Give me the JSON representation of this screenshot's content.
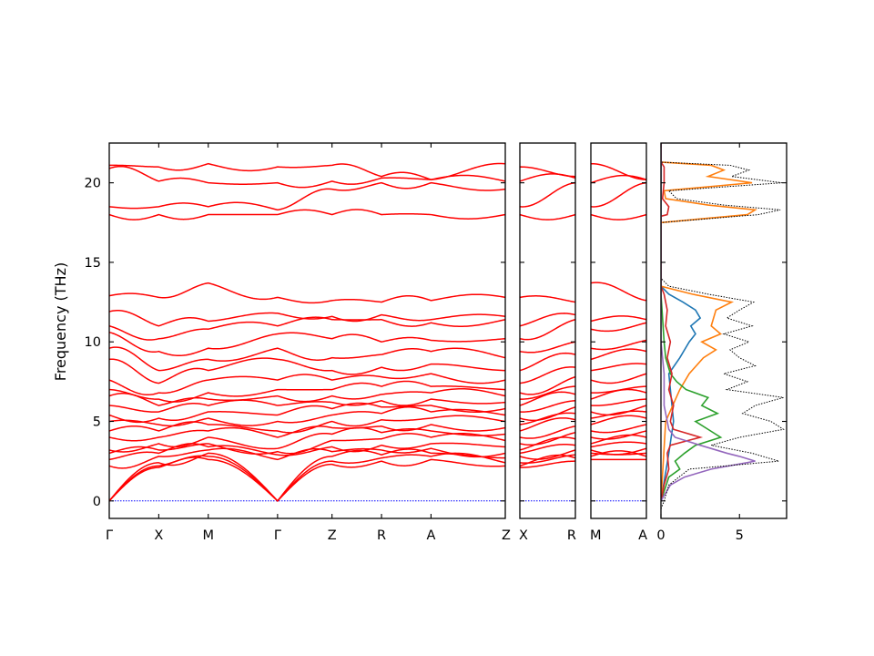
{
  "chart_data": {
    "type": "line",
    "title": "",
    "ylabel": "Frequency (THz)",
    "ylim": [
      -1.1,
      22.5
    ],
    "yticks": [
      0,
      5,
      10,
      15,
      20
    ],
    "band_color": "#ff0000",
    "zero_line_color": "#0000ff",
    "grid": false,
    "segments": [
      {
        "path": [
          "Γ",
          "X",
          "M",
          "Γ",
          "Z",
          "R",
          "A",
          "Z"
        ],
        "tick_labels": [
          "Γ",
          "X",
          "M",
          "Γ",
          "Z",
          "R",
          "A",
          ""
        ],
        "k": [
          0,
          1,
          2,
          3.4,
          4.5,
          5.5,
          6.5,
          8
        ]
      },
      {
        "path": [
          "X",
          "R"
        ],
        "tick_labels": [
          "X",
          "R"
        ],
        "k": [
          0,
          1
        ]
      },
      {
        "path": [
          "M",
          "A"
        ],
        "tick_labels": [
          "M",
          "A"
        ],
        "k": [
          0,
          1
        ]
      }
    ],
    "segment_edge_labels": [
      "Z|X",
      "R|M"
    ],
    "bands_at_high_symmetry_points_THz": [
      [
        0,
        0,
        0,
        2.2,
        2.6,
        3.0,
        3.2,
        4.0,
        4.4,
        5.0,
        5.4,
        6.0,
        6.6,
        7.0,
        7.6,
        8.9,
        9.6,
        10.6,
        11.0,
        11.9,
        12.9,
        18.0,
        18.5,
        20.9,
        21.1
      ],
      [
        2.1,
        2.2,
        2.4,
        2.8,
        3.0,
        3.2,
        3.6,
        4.0,
        4.4,
        4.8,
        5.2,
        5.6,
        6.0,
        6.4,
        6.8,
        7.4,
        8.2,
        9.4,
        10.2,
        11.0,
        12.8,
        18.0,
        18.5,
        20.1,
        21.0
      ],
      [
        2.6,
        2.8,
        3.0,
        3.2,
        3.4,
        3.6,
        4.0,
        4.4,
        4.8,
        5.2,
        5.6,
        6.0,
        6.4,
        6.8,
        7.6,
        8.2,
        8.9,
        9.6,
        10.8,
        11.3,
        13.7,
        18.0,
        18.5,
        20.0,
        21.2
      ],
      [
        0,
        0,
        0,
        2.6,
        2.9,
        3.1,
        3.3,
        4.0,
        4.4,
        5.0,
        5.4,
        6.0,
        6.6,
        7.0,
        7.6,
        8.9,
        9.6,
        10.5,
        11.0,
        11.8,
        12.8,
        18.0,
        18.3,
        20.0,
        21.0
      ],
      [
        2.3,
        2.5,
        2.8,
        3.1,
        3.4,
        3.8,
        4.2,
        4.6,
        5.0,
        5.4,
        5.8,
        6.2,
        6.6,
        7.0,
        7.6,
        8.2,
        9.0,
        10.2,
        11.4,
        11.6,
        12.6,
        18.0,
        19.6,
        20.1,
        21.1
      ],
      [
        2.5,
        2.7,
        2.9,
        3.2,
        3.5,
        3.9,
        4.3,
        4.7,
        5.1,
        5.5,
        5.9,
        6.3,
        6.7,
        7.2,
        7.8,
        8.4,
        9.2,
        10.0,
        11.4,
        11.7,
        12.5,
        18.0,
        20.0,
        20.3,
        20.4
      ],
      [
        2.6,
        2.8,
        3.0,
        3.3,
        3.6,
        4.0,
        4.4,
        4.8,
        5.2,
        5.6,
        6.0,
        6.4,
        6.8,
        7.2,
        8.0,
        8.6,
        9.4,
        10.1,
        11.2,
        11.4,
        12.6,
        18.0,
        20.0,
        20.2,
        20.2
      ],
      [
        2.2,
        2.4,
        2.7,
        3.0,
        3.4,
        3.8,
        4.2,
        4.6,
        5.0,
        5.4,
        5.8,
        6.2,
        6.6,
        7.0,
        7.6,
        8.2,
        9.0,
        10.2,
        11.4,
        11.6,
        12.8,
        18.0,
        19.6,
        20.1,
        21.2
      ]
    ],
    "dos_panel": {
      "xlim": [
        0,
        8
      ],
      "xticks": [
        0,
        5
      ],
      "total_dos_color": "#000000",
      "total_dos_style": "dotted",
      "projected_dos_colors": [
        "#1f77b4",
        "#ff7f0e",
        "#2ca02c",
        "#d62728",
        "#9467bd"
      ],
      "total_dos": [
        [
          -0.5,
          0
        ],
        [
          0,
          0.2
        ],
        [
          1,
          0.5
        ],
        [
          2,
          1.8
        ],
        [
          2.5,
          7.5
        ],
        [
          3,
          5.8
        ],
        [
          3.5,
          3.2
        ],
        [
          4,
          5.0
        ],
        [
          4.5,
          7.8
        ],
        [
          5,
          7.0
        ],
        [
          5.5,
          5.2
        ],
        [
          6,
          6.0
        ],
        [
          6.5,
          7.8
        ],
        [
          7,
          4.2
        ],
        [
          7.5,
          5.5
        ],
        [
          8,
          4.0
        ],
        [
          8.5,
          6.0
        ],
        [
          9,
          5.0
        ],
        [
          9.5,
          4.4
        ],
        [
          10,
          5.6
        ],
        [
          10.5,
          4.0
        ],
        [
          11,
          5.8
        ],
        [
          11.5,
          4.2
        ],
        [
          12,
          5.0
        ],
        [
          12.5,
          5.9
        ],
        [
          13,
          3.0
        ],
        [
          13.5,
          0.5
        ],
        [
          14,
          0
        ],
        [
          17.5,
          0
        ],
        [
          18,
          6.2
        ],
        [
          18.3,
          7.6
        ],
        [
          18.6,
          4.0
        ],
        [
          19,
          1.0
        ],
        [
          19.5,
          0.5
        ],
        [
          20,
          7.7
        ],
        [
          20.4,
          4.5
        ],
        [
          20.8,
          5.6
        ],
        [
          21.1,
          4.4
        ],
        [
          21.3,
          0
        ],
        [
          22.5,
          0
        ]
      ],
      "projected_dos": [
        [
          [
            0,
            0
          ],
          [
            3,
            0.5
          ],
          [
            5,
            0.8
          ],
          [
            7,
            0.6
          ],
          [
            8,
            0.5
          ],
          [
            9,
            1.2
          ],
          [
            10,
            1.8
          ],
          [
            10.5,
            2.2
          ],
          [
            11,
            1.9
          ],
          [
            11.5,
            2.5
          ],
          [
            12,
            2.2
          ],
          [
            12.5,
            1.4
          ],
          [
            13,
            0.5
          ],
          [
            13.5,
            0
          ],
          [
            22.5,
            0
          ]
        ],
        [
          [
            0,
            0
          ],
          [
            5,
            0.3
          ],
          [
            7,
            1.2
          ],
          [
            8,
            1.8
          ],
          [
            9,
            2.7
          ],
          [
            9.5,
            3.5
          ],
          [
            10,
            2.6
          ],
          [
            10.5,
            3.8
          ],
          [
            11,
            3.2
          ],
          [
            12,
            3.5
          ],
          [
            12.5,
            4.5
          ],
          [
            13,
            2.0
          ],
          [
            13.5,
            0
          ],
          [
            17.5,
            0
          ],
          [
            18,
            5.5
          ],
          [
            18.3,
            6.0
          ],
          [
            18.6,
            3.0
          ],
          [
            19,
            0.3
          ],
          [
            19.5,
            0.2
          ],
          [
            20,
            5.8
          ],
          [
            20.4,
            3.0
          ],
          [
            20.8,
            4.0
          ],
          [
            21.1,
            3.2
          ],
          [
            21.3,
            0
          ],
          [
            22.5,
            0
          ]
        ],
        [
          [
            0,
            0
          ],
          [
            1.5,
            0.5
          ],
          [
            2,
            1.2
          ],
          [
            2.5,
            0.9
          ],
          [
            3,
            1.5
          ],
          [
            3.5,
            2.2
          ],
          [
            4,
            3.8
          ],
          [
            4.5,
            3.0
          ],
          [
            5,
            2.2
          ],
          [
            5.5,
            3.6
          ],
          [
            6,
            2.6
          ],
          [
            6.5,
            3.0
          ],
          [
            7,
            1.6
          ],
          [
            7.5,
            1.0
          ],
          [
            8,
            0.6
          ],
          [
            9,
            0.3
          ],
          [
            10,
            0.2
          ],
          [
            13,
            0
          ],
          [
            22.5,
            0
          ]
        ],
        [
          [
            0,
            0
          ],
          [
            1,
            0.2
          ],
          [
            2,
            0.5
          ],
          [
            3,
            0.4
          ],
          [
            3.5,
            0.6
          ],
          [
            4,
            2.5
          ],
          [
            4.5,
            0.8
          ],
          [
            5,
            0.6
          ],
          [
            6,
            0.8
          ],
          [
            7,
            0.5
          ],
          [
            8,
            0.7
          ],
          [
            9,
            0.4
          ],
          [
            10,
            0.6
          ],
          [
            11,
            0.3
          ],
          [
            12,
            0.4
          ],
          [
            13,
            0.2
          ],
          [
            13.5,
            0
          ],
          [
            17.9,
            0
          ],
          [
            18,
            0.4
          ],
          [
            18.5,
            0.5
          ],
          [
            19,
            0.1
          ],
          [
            20,
            0.2
          ],
          [
            21,
            0.2
          ],
          [
            21.3,
            0
          ],
          [
            22.5,
            0
          ]
        ],
        [
          [
            0,
            0
          ],
          [
            1,
            0.6
          ],
          [
            1.5,
            1.5
          ],
          [
            2,
            3.2
          ],
          [
            2.5,
            6.0
          ],
          [
            2.8,
            5.0
          ],
          [
            3,
            4.2
          ],
          [
            3.5,
            2.5
          ],
          [
            4,
            0.9
          ],
          [
            4.5,
            0.5
          ],
          [
            5,
            0.4
          ],
          [
            6,
            0.2
          ],
          [
            7,
            0.2
          ],
          [
            8,
            0.2
          ],
          [
            9,
            0.1
          ],
          [
            10,
            0
          ],
          [
            22.5,
            0
          ]
        ]
      ]
    }
  }
}
